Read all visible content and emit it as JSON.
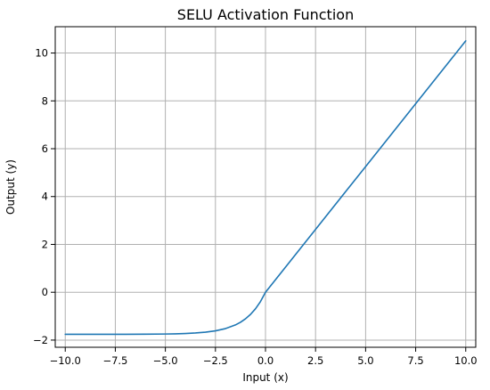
{
  "chart_data": {
    "type": "line",
    "title": "SELU Activation Function",
    "xlabel": "Input (x)",
    "ylabel": "Output (y)",
    "xlim": [
      -10.5,
      10.5
    ],
    "ylim": [
      -2.3,
      11.1
    ],
    "xticks": [
      -10.0,
      -7.5,
      -5.0,
      -2.5,
      0.0,
      2.5,
      5.0,
      7.5,
      10.0
    ],
    "xtick_labels": [
      "−10.0",
      "−7.5",
      "−5.0",
      "−2.5",
      "0.0",
      "2.5",
      "5.0",
      "7.5",
      "10.0"
    ],
    "yticks": [
      -2,
      0,
      2,
      4,
      6,
      8,
      10
    ],
    "ytick_labels": [
      "−2",
      "0",
      "2",
      "4",
      "6",
      "8",
      "10"
    ],
    "grid": true,
    "series": [
      {
        "color": "#1f77b4",
        "x": [
          -10,
          -9,
          -8,
          -7,
          -6,
          -5,
          -4.5,
          -4,
          -3.5,
          -3,
          -2.5,
          -2,
          -1.5,
          -1.25,
          -1,
          -0.75,
          -0.5,
          -0.25,
          0,
          1,
          2,
          3,
          4,
          5,
          6,
          7,
          8,
          9,
          10
        ],
        "y": [
          -1.758,
          -1.7579,
          -1.7575,
          -1.7564,
          -1.7533,
          -1.7463,
          -1.7386,
          -1.7256,
          -1.7036,
          -1.6706,
          -1.6139,
          -1.5202,
          -1.3658,
          -1.2553,
          -1.1113,
          -0.9264,
          -0.6918,
          -0.3891,
          0,
          1.0507,
          2.1014,
          3.1521,
          4.2028,
          5.2535,
          6.3042,
          7.3549,
          8.4056,
          9.4563,
          10.507
        ]
      }
    ]
  }
}
